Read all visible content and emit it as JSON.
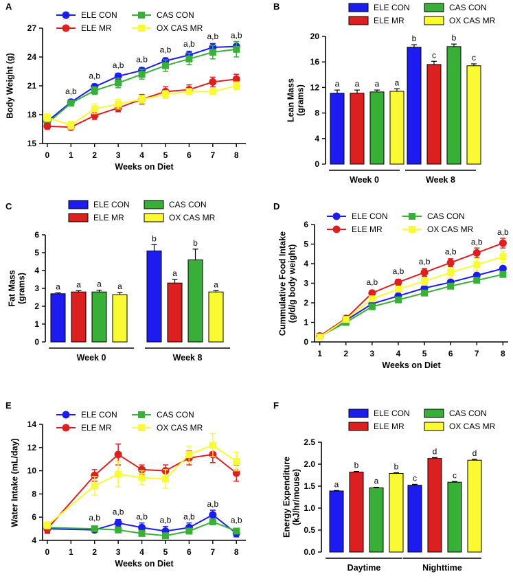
{
  "colors": {
    "ele_con": "#1c1cf0",
    "ele_mr": "#dc2020",
    "cas_con": "#38b038",
    "ox_cas_mr": "#fafa32"
  },
  "chart_data": [
    {
      "id": "A",
      "panel_label": "A",
      "type": "line",
      "xlabel": "Weeks on Diet",
      "ylabel": "Body Weight (g)",
      "xlim": [
        -0.2,
        8.4
      ],
      "ylim": [
        15,
        27
      ],
      "yticks": [
        15,
        18,
        21,
        24,
        27
      ],
      "xticks": [
        0,
        1,
        2,
        3,
        4,
        5,
        6,
        7,
        8
      ],
      "legend": [
        "ELE CON",
        "CAS CON",
        "ELE MR",
        "OX CAS MR"
      ],
      "series": [
        {
          "name": "ELE CON",
          "key": "ele_con",
          "marker": "circle",
          "x": [
            0,
            1,
            2,
            3,
            4,
            5,
            6,
            7,
            8
          ],
          "y": [
            17.3,
            19.3,
            20.9,
            22.0,
            22.6,
            23.6,
            24.2,
            25.0,
            25.1
          ],
          "err": [
            0.3,
            0.3,
            0.3,
            0.3,
            0.3,
            0.3,
            0.4,
            0.4,
            0.5
          ]
        },
        {
          "name": "CAS CON",
          "key": "cas_con",
          "marker": "square",
          "x": [
            0,
            1,
            2,
            3,
            4,
            5,
            6,
            7,
            8
          ],
          "y": [
            17.1,
            19.2,
            20.5,
            21.3,
            22.2,
            23.1,
            23.8,
            24.5,
            24.8
          ],
          "err": [
            0.3,
            0.3,
            0.4,
            0.5,
            0.5,
            0.6,
            0.6,
            0.7,
            0.8
          ]
        },
        {
          "name": "ELE MR",
          "key": "ele_mr",
          "marker": "circle",
          "x": [
            0,
            1,
            2,
            3,
            4,
            5,
            6,
            7,
            8
          ],
          "y": [
            16.8,
            16.7,
            17.9,
            18.7,
            19.6,
            20.4,
            20.6,
            21.4,
            21.7
          ],
          "err": [
            0.3,
            0.3,
            0.4,
            0.4,
            0.5,
            0.5,
            0.5,
            0.5,
            0.5
          ]
        },
        {
          "name": "OX CAS MR",
          "key": "ox_cas_mr",
          "marker": "square",
          "x": [
            0,
            1,
            2,
            3,
            4,
            5,
            6,
            7,
            8
          ],
          "y": [
            17.7,
            16.9,
            18.6,
            19.1,
            19.6,
            20.1,
            20.4,
            20.4,
            21.0
          ],
          "err": [
            0.4,
            0.4,
            0.5,
            0.5,
            0.4,
            0.4,
            0.3,
            0.3,
            0.4
          ]
        }
      ],
      "annotations": [
        {
          "x": 1,
          "y": 19.3,
          "text": "a,b"
        },
        {
          "x": 2,
          "y": 20.9,
          "text": "a,b"
        },
        {
          "x": 3,
          "y": 22.0,
          "text": "a,b"
        },
        {
          "x": 4,
          "y": 22.6,
          "text": "a,b"
        },
        {
          "x": 5,
          "y": 23.6,
          "text": "a,b"
        },
        {
          "x": 6,
          "y": 24.2,
          "text": "a,b"
        },
        {
          "x": 7,
          "y": 25.0,
          "text": "a,b"
        },
        {
          "x": 8,
          "y": 25.1,
          "text": "a,b"
        }
      ]
    },
    {
      "id": "B",
      "panel_label": "B",
      "type": "bar",
      "ylabel": [
        "Lean Mass",
        "(grams)"
      ],
      "ylim": [
        0,
        20
      ],
      "yticks": [
        0,
        4,
        8,
        12,
        16,
        20
      ],
      "groups": [
        "Week 0",
        "Week 8"
      ],
      "legend": [
        "ELE CON",
        "CAS CON",
        "ELE MR",
        "OX CAS MR"
      ],
      "series": [
        {
          "name": "ELE CON",
          "key": "ele_con",
          "values": [
            11.1,
            18.3
          ],
          "err": [
            0.5,
            0.4
          ],
          "labels": [
            "a",
            "b"
          ]
        },
        {
          "name": "ELE MR",
          "key": "ele_mr",
          "values": [
            11.1,
            15.6
          ],
          "err": [
            0.5,
            0.5
          ],
          "labels": [
            "a",
            "c"
          ]
        },
        {
          "name": "CAS CON",
          "key": "cas_con",
          "values": [
            11.3,
            18.4
          ],
          "err": [
            0.3,
            0.4
          ],
          "labels": [
            "a",
            "b"
          ]
        },
        {
          "name": "OX CAS MR",
          "key": "ox_cas_mr",
          "values": [
            11.4,
            15.4
          ],
          "err": [
            0.4,
            0.3
          ],
          "labels": [
            "a",
            "c"
          ]
        }
      ]
    },
    {
      "id": "C",
      "panel_label": "C",
      "type": "bar",
      "ylabel": [
        "Fat Mass",
        "(grams)"
      ],
      "ylim": [
        0,
        6
      ],
      "yticks": [
        0,
        1,
        2,
        3,
        4,
        5,
        6
      ],
      "groups": [
        "Week 0",
        "Week 8"
      ],
      "legend": [
        "ELE CON",
        "CAS CON",
        "ELE MR",
        "OX CAS MR"
      ],
      "series": [
        {
          "name": "ELE CON",
          "key": "ele_con",
          "values": [
            2.7,
            5.1
          ],
          "err": [
            0.05,
            0.35
          ],
          "labels": [
            "a",
            "b"
          ]
        },
        {
          "name": "ELE MR",
          "key": "ele_mr",
          "values": [
            2.8,
            3.3
          ],
          "err": [
            0.07,
            0.2
          ],
          "labels": [
            "a",
            "a"
          ]
        },
        {
          "name": "CAS CON",
          "key": "cas_con",
          "values": [
            2.8,
            4.6
          ],
          "err": [
            0.1,
            0.6
          ],
          "labels": [
            "a",
            "b"
          ]
        },
        {
          "name": "OX CAS MR",
          "key": "ox_cas_mr",
          "values": [
            2.65,
            2.8
          ],
          "err": [
            0.12,
            0.07
          ],
          "labels": [
            "a",
            "a"
          ]
        }
      ]
    },
    {
      "id": "D",
      "panel_label": "D",
      "type": "line",
      "xlabel": "Weeks on Diet",
      "ylabel": [
        "Cummulative Food  Intake",
        "(g/d/g body weight)"
      ],
      "xlim": [
        0.8,
        8.2
      ],
      "ylim": [
        0,
        6
      ],
      "yticks": [
        0,
        1,
        2,
        3,
        4,
        5,
        6
      ],
      "xticks": [
        1,
        2,
        3,
        4,
        5,
        6,
        7,
        8
      ],
      "legend": [
        "ELE CON",
        "CAS CON",
        "ELE MR",
        "OX CAS MR"
      ],
      "series": [
        {
          "name": "ELE CON",
          "key": "ele_con",
          "marker": "circle",
          "x": [
            1,
            2,
            3,
            4,
            5,
            6,
            7,
            8
          ],
          "y": [
            0.3,
            1.1,
            1.95,
            2.35,
            2.75,
            3.05,
            3.4,
            3.75
          ],
          "err": [
            0.05,
            0.05,
            0.08,
            0.08,
            0.08,
            0.08,
            0.1,
            0.1
          ]
        },
        {
          "name": "CAS CON",
          "key": "cas_con",
          "marker": "square",
          "x": [
            1,
            2,
            3,
            4,
            5,
            6,
            7,
            8
          ],
          "y": [
            0.28,
            1.0,
            1.8,
            2.15,
            2.5,
            2.85,
            3.15,
            3.45
          ],
          "err": [
            0.05,
            0.05,
            0.08,
            0.08,
            0.08,
            0.1,
            0.1,
            0.1
          ]
        },
        {
          "name": "ELE MR",
          "key": "ele_mr",
          "marker": "circle",
          "x": [
            1,
            2,
            3,
            4,
            5,
            6,
            7,
            8
          ],
          "y": [
            0.3,
            1.2,
            2.5,
            3.05,
            3.55,
            4.05,
            4.55,
            5.05
          ],
          "err": [
            0.05,
            0.05,
            0.1,
            0.15,
            0.2,
            0.2,
            0.25,
            0.25
          ]
        },
        {
          "name": "OX CAS MR",
          "key": "ox_cas_mr",
          "marker": "square",
          "x": [
            1,
            2,
            3,
            4,
            5,
            6,
            7,
            8
          ],
          "y": [
            0.25,
            1.15,
            2.2,
            2.7,
            3.1,
            3.55,
            3.95,
            4.35
          ],
          "err": [
            0.05,
            0.05,
            0.1,
            0.15,
            0.2,
            0.25,
            0.3,
            0.3
          ]
        }
      ],
      "annotations": [
        {
          "x": 3,
          "y": 2.5,
          "text": "a,b"
        },
        {
          "x": 4,
          "y": 3.05,
          "text": "a,b"
        },
        {
          "x": 5,
          "y": 3.55,
          "text": "a,b"
        },
        {
          "x": 6,
          "y": 4.05,
          "text": "a,b"
        },
        {
          "x": 7,
          "y": 4.55,
          "text": "a,b"
        },
        {
          "x": 8,
          "y": 5.05,
          "text": "a,b"
        }
      ]
    },
    {
      "id": "E",
      "panel_label": "E",
      "type": "line",
      "xlabel": "Weeks on Diet",
      "ylabel": "Water Intake (mL/day)",
      "xlim": [
        -0.2,
        8.4
      ],
      "ylim": [
        4,
        14
      ],
      "yticks": [
        4,
        6,
        8,
        10,
        12,
        14
      ],
      "xticks": [
        0,
        1,
        2,
        3,
        4,
        5,
        6,
        7,
        8
      ],
      "legend": [
        "ELE CON",
        "CAS CON",
        "ELE MR",
        "OX CAS MR"
      ],
      "series": [
        {
          "name": "ELE CON",
          "key": "ele_con",
          "marker": "circle",
          "x": [
            0,
            2,
            3,
            4,
            5,
            6,
            7,
            8
          ],
          "y": [
            5.0,
            4.9,
            5.5,
            5.1,
            4.8,
            5.1,
            6.2,
            4.6
          ],
          "err": [
            0.3,
            0.2,
            0.3,
            0.4,
            0.4,
            0.4,
            0.4,
            0.3
          ]
        },
        {
          "name": "CAS CON",
          "key": "cas_con",
          "marker": "square",
          "x": [
            0,
            2,
            3,
            4,
            5,
            6,
            7,
            8
          ],
          "y": [
            5.1,
            5.0,
            4.9,
            4.6,
            4.4,
            4.8,
            5.6,
            4.8
          ]
        },
        {
          "name": "ELE MR",
          "key": "ele_mr",
          "marker": "circle",
          "x": [
            0,
            2,
            3,
            4,
            5,
            6,
            7,
            8
          ],
          "y": [
            5.0,
            9.6,
            11.4,
            10.1,
            10.0,
            11.1,
            11.4,
            9.8
          ],
          "err": [
            0.4,
            0.5,
            0.9,
            0.4,
            0.5,
            0.6,
            0.7,
            0.7
          ]
        },
        {
          "name": "OX CAS MR",
          "key": "ox_cas_mr",
          "marker": "square",
          "x": [
            0,
            2,
            3,
            4,
            5,
            6,
            7,
            8
          ],
          "y": [
            5.3,
            8.7,
            9.7,
            9.4,
            9.3,
            11.4,
            12.2,
            10.8
          ],
          "err": [
            0.3,
            0.8,
            1.1,
            0.6,
            0.8,
            0.7,
            1.0,
            0.8
          ]
        }
      ],
      "annotations": [
        {
          "x": 2,
          "y": 5.0,
          "text": "a,b"
        },
        {
          "x": 3,
          "y": 5.5,
          "text": "a,b"
        },
        {
          "x": 4,
          "y": 5.1,
          "text": "a,b"
        },
        {
          "x": 5,
          "y": 4.8,
          "text": "a,b"
        },
        {
          "x": 6,
          "y": 5.1,
          "text": "a,b"
        },
        {
          "x": 7,
          "y": 6.2,
          "text": "a,b"
        },
        {
          "x": 8,
          "y": 4.8,
          "text": "a,b"
        }
      ]
    },
    {
      "id": "F",
      "panel_label": "F",
      "type": "bar",
      "ylabel": [
        "Energy Expenditure",
        "(kJ/hr/mouse)"
      ],
      "ylim": [
        0,
        2.5
      ],
      "yticks": [
        "0.0",
        "0.5",
        "1.0",
        "1.5",
        "2.0",
        "2.5"
      ],
      "groups": [
        "Daytime",
        "Nighttime"
      ],
      "legend": [
        "ELE CON",
        "CAS CON",
        "ELE MR",
        "OX CAS MR"
      ],
      "series": [
        {
          "name": "ELE CON",
          "key": "ele_con",
          "values": [
            1.39,
            1.52
          ],
          "err": [
            0.01,
            0.02
          ],
          "labels": [
            "a",
            "c"
          ]
        },
        {
          "name": "ELE MR",
          "key": "ele_mr",
          "values": [
            1.82,
            2.13
          ],
          "err": [
            0.015,
            0.02
          ],
          "labels": [
            "b",
            "d"
          ]
        },
        {
          "name": "CAS CON",
          "key": "cas_con",
          "values": [
            1.46,
            1.59
          ],
          "err": [
            0.015,
            0.015
          ],
          "labels": [
            "a",
            "c"
          ]
        },
        {
          "name": "OX CAS MR",
          "key": "ox_cas_mr",
          "values": [
            1.79,
            2.09
          ],
          "err": [
            0.015,
            0.02
          ],
          "labels": [
            "b",
            "d"
          ]
        }
      ]
    }
  ]
}
